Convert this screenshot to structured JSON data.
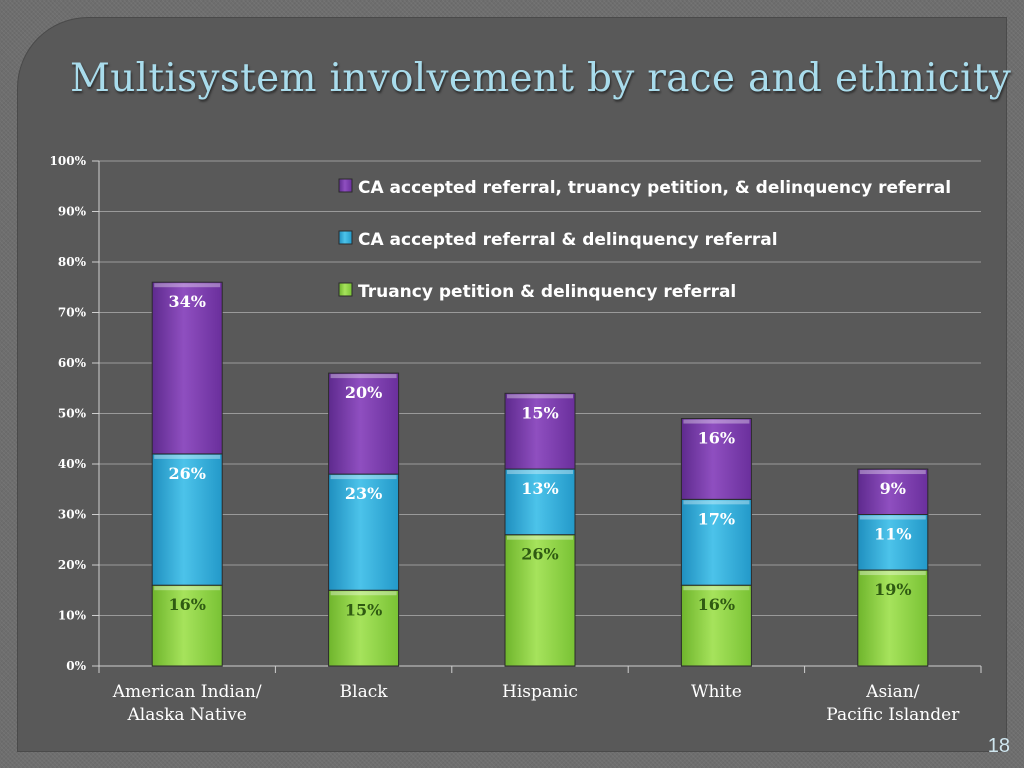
{
  "slide": {
    "title": "Multisystem involvement by race and ethnicity",
    "page_number": "18"
  },
  "colors": {
    "truancy": "#92d050",
    "ca_delinquency": "#29abd7",
    "all_three": "#7b3aa8"
  },
  "chart_data": {
    "type": "bar",
    "stacked": true,
    "title": "",
    "xlabel": "",
    "ylabel": "",
    "categories": [
      "American Indian/ Alaska Native",
      "Black",
      "Hispanic",
      "White",
      "Asian/ Pacific Islander"
    ],
    "series": [
      {
        "name": "Truancy petition & delinquency referral",
        "values": [
          16,
          15,
          26,
          16,
          19
        ],
        "labels": [
          "16%",
          "15%",
          "26%",
          "16%",
          "19%"
        ]
      },
      {
        "name": "CA accepted referral & delinquency referral",
        "values": [
          26,
          23,
          13,
          17,
          11
        ],
        "labels": [
          "26%",
          "23%",
          "13%",
          "17%",
          "11%"
        ]
      },
      {
        "name": "CA accepted referral, truancy petition, & delinquency referral",
        "values": [
          34,
          20,
          15,
          16,
          9
        ],
        "labels": [
          "34%",
          "20%",
          "15%",
          "16%",
          "9%"
        ]
      }
    ],
    "ylim": [
      0,
      100
    ],
    "yticks": [
      "0%",
      "10%",
      "20%",
      "30%",
      "40%",
      "50%",
      "60%",
      "70%",
      "80%",
      "90%",
      "100%"
    ],
    "legend_order": [
      "CA accepted referral, truancy petition, & delinquency referral",
      "CA accepted referral & delinquency referral",
      "Truancy petition & delinquency referral"
    ],
    "legend_position": "top-right",
    "grid": true
  }
}
